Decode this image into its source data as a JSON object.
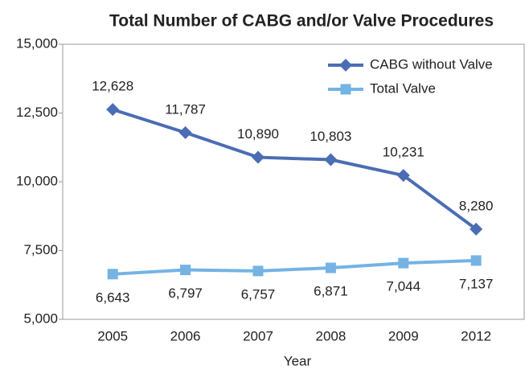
{
  "chart_data": {
    "type": "line",
    "title": "Total Number of CABG and/or Valve Procedures",
    "x_label": "Year",
    "categories": [
      "2005",
      "2006",
      "2007",
      "2008",
      "2009",
      "2012"
    ],
    "series": [
      {
        "name": "CABG without Valve",
        "color": "#4a6db4",
        "marker": "diamond",
        "values": [
          12628,
          11787,
          10890,
          10803,
          10231,
          8280
        ],
        "value_labels": [
          "12,628",
          "11,787",
          "10,890",
          "10,803",
          "10,231",
          "8,280"
        ]
      },
      {
        "name": "Total Valve",
        "color": "#74b3e3",
        "marker": "square",
        "values": [
          6643,
          6797,
          6757,
          6871,
          7044,
          7137
        ],
        "value_labels": [
          "6,643",
          "6,797",
          "6,757",
          "6,871",
          "7,044",
          "7,137"
        ]
      }
    ],
    "ylim": [
      5000,
      15000
    ],
    "yticks": [
      {
        "value": 5000,
        "label": "5,000"
      },
      {
        "value": 7500,
        "label": "7,500"
      },
      {
        "value": 10000,
        "label": "10,000"
      },
      {
        "value": 12500,
        "label": "12,500"
      },
      {
        "value": 15000,
        "label": "15,000"
      }
    ],
    "legend": "upper right"
  }
}
